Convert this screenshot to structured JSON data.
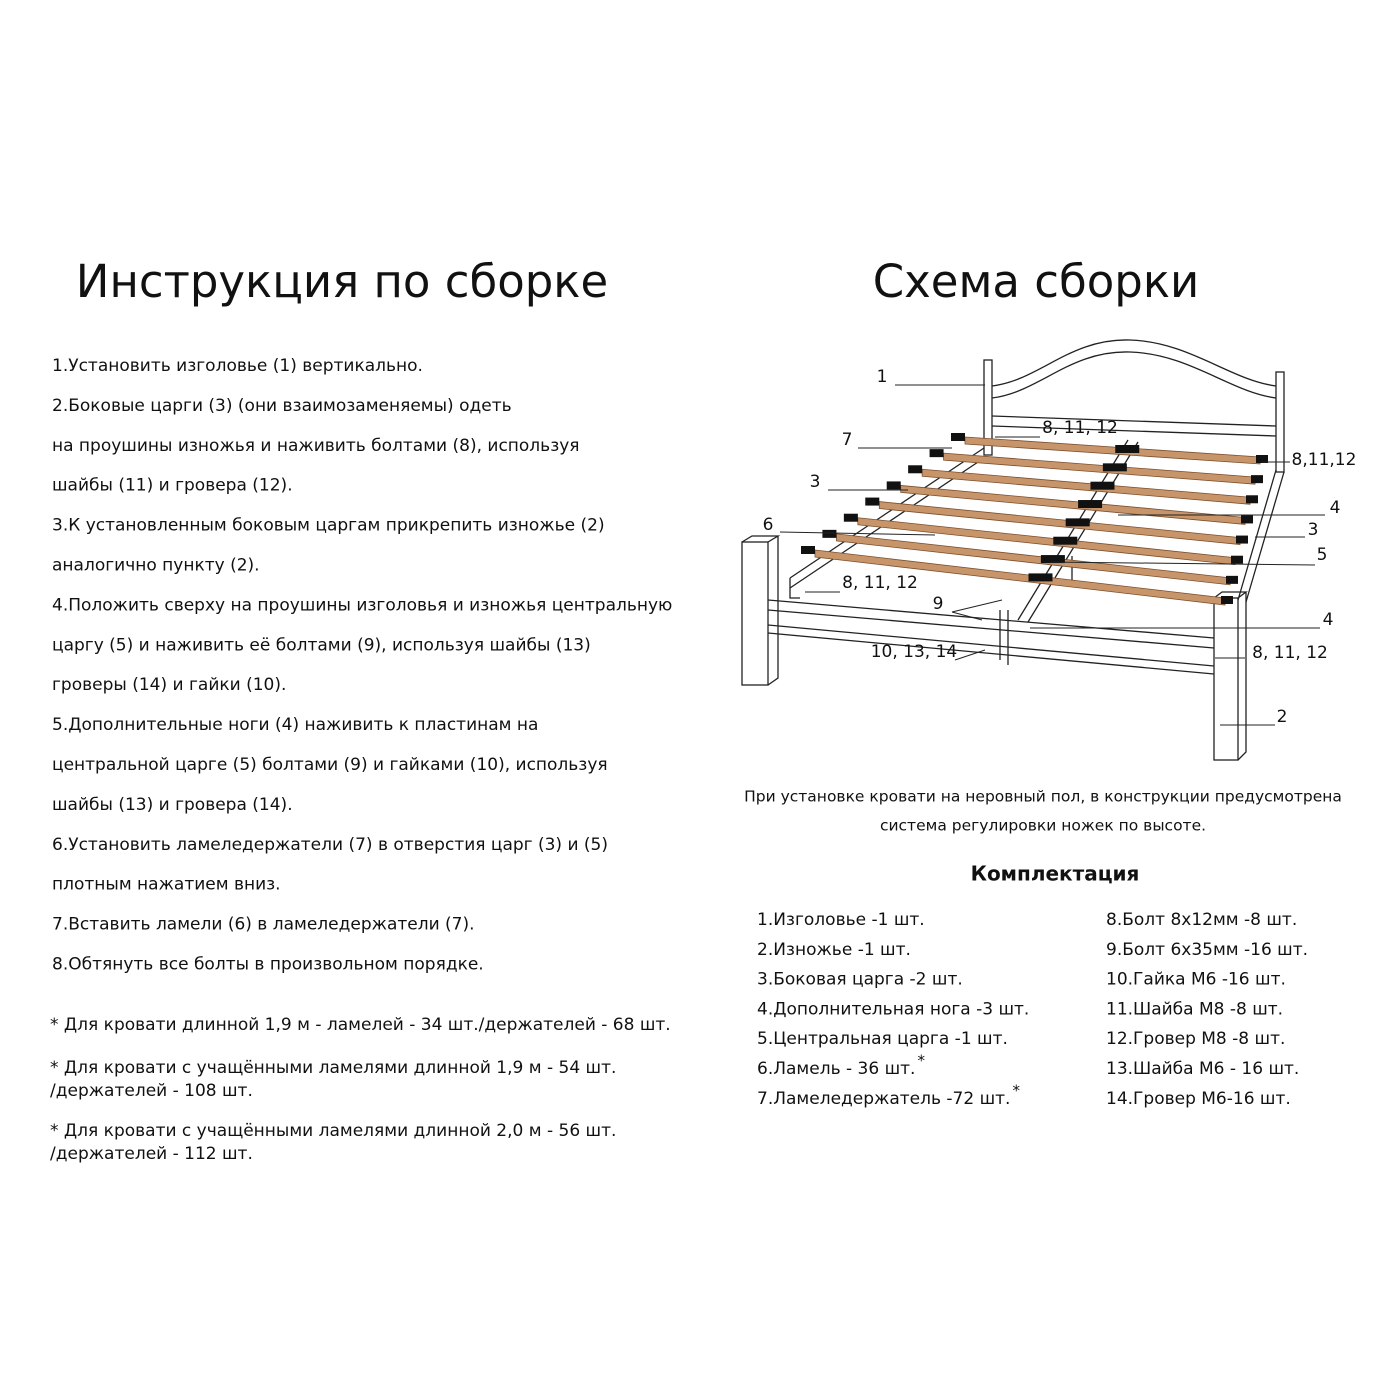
{
  "instructions": {
    "title": "Инструкция по сборке",
    "lines": [
      "1.Установить изголовье (1) вертикально.",
      "2.Боковые царги (3) (они взаимозаменяемы) одеть",
      "на проушины изножья и наживить болтами (8), используя",
      "шайбы (11) и гровера (12).",
      "3.К установленным боковым царгам прикрепить изножье (2)",
      "аналогично пункту (2).",
      "4.Положить сверху на проушины изголовья и изножья центральную",
      "царгу (5) и наживить её болтами (9), используя шайбы (13)",
      "гроверы (14) и гайки (10).",
      "5.Дополнительные ноги (4) наживить к пластинам на",
      "центральной царге (5) болтами (9) и гайками (10), используя",
      "шайбы (13) и гровера (14).",
      "6.Установить ламеледержатели (7) в отверстия царг (3) и (5)",
      "плотным нажатием вниз.",
      "7.Вставить ламели (6) в ламеледержатели (7).",
      "8.Обтянуть все болты в произвольном порядке."
    ],
    "footnotes": [
      [
        "* Для кровати длинной 1,9 м - ламелей - 34 шт./держателей - 68 шт."
      ],
      [
        "* Для кровати с учащёнными ламелями длинной 1,9 м - 54 шт.",
        "/держателей - 108 шт."
      ],
      [
        "* Для кровати с учащёнными ламелями длинной 2,0 м - 56 шт.",
        "/держателей - 112 шт."
      ]
    ]
  },
  "scheme": {
    "title": "Схема сборки",
    "callouts": [
      "1",
      "7",
      "8, 11, 12",
      "8,11,12",
      "3",
      "4",
      "6",
      "3",
      "5",
      "8, 11, 12",
      "9",
      "4",
      "10, 13, 14",
      "8, 11, 12",
      "2"
    ],
    "note": [
      "При установке кровати на неровный пол, в конструкции предусмотрена",
      "система регулировки ножек по высоте."
    ],
    "kit": {
      "title": "Комплектация",
      "left": [
        "1.Изголовье -1 шт.",
        "2.Изножье -1 шт.",
        "3.Боковая царга -2 шт.",
        "4.Дополнительная нога -3 шт.",
        "5.Центральная царга -1 шт.",
        {
          "text": "6.Ламель - 36 шт.",
          "sup": "*"
        },
        {
          "text": "7.Ламеледержатель -72 шт.",
          "sup": "*"
        }
      ],
      "right": [
        "8.Болт 8х12мм -8 шт.",
        "9.Болт 6х35мм -16 шт.",
        "10.Гайка М6 -16 шт.",
        "11.Шайба М8 -8 шт.",
        "12.Гровер М8 -8 шт.",
        "13.Шайба М6 - 16 шт.",
        "14.Гровер М6-16 шт."
      ]
    }
  }
}
